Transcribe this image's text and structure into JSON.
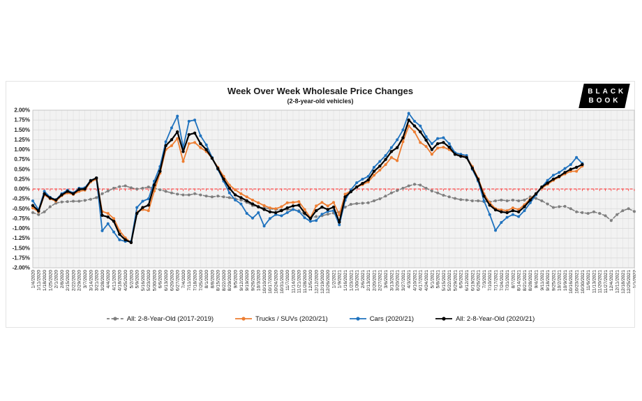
{
  "panel": {
    "logo": {
      "line1": "BLACK",
      "line2": "BOOK"
    }
  },
  "chart_data": {
    "type": "line",
    "title": "Week Over Week Wholesale Price Changes",
    "subtitle": "(2-8-year-old vehicles)",
    "xlabel": "",
    "ylabel": "",
    "ylim": [
      -2.0,
      2.0
    ],
    "ytick_step": 0.25,
    "y_tick_labels": [
      "2.00%",
      "1.75%",
      "1.50%",
      "1.25%",
      "1.00%",
      "0.75%",
      "0.50%",
      "0.25%",
      "0.00%",
      "-0.25%",
      "-0.50%",
      "-0.75%",
      "-1.00%",
      "-1.25%",
      "-1.50%",
      "-1.75%",
      "-2.00%"
    ],
    "grid": true,
    "legend_position": "bottom",
    "zero_line": {
      "value": 0.0,
      "color": "#ff2222",
      "style": "dashed-ticks"
    },
    "x": [
      "1/4/2020",
      "1/11/2020",
      "1/18/2020",
      "1/25/2020",
      "2/1/2020",
      "2/8/2020",
      "2/15/2020",
      "2/22/2020",
      "2/29/2020",
      "3/7/2020",
      "3/14/2020",
      "3/21/2020",
      "3/28/2020",
      "4/4/2020",
      "4/11/2020",
      "4/18/2020",
      "4/25/2020",
      "5/2/2020",
      "5/9/2020",
      "5/16/2020",
      "5/23/2020",
      "5/30/2020",
      "6/6/2020",
      "6/13/2020",
      "6/20/2020",
      "6/27/2020",
      "7/4/2020",
      "7/11/2020",
      "7/18/2020",
      "7/25/2020",
      "8/1/2020",
      "8/8/2020",
      "8/15/2020",
      "8/22/2020",
      "8/29/2020",
      "9/5/2020",
      "9/12/2020",
      "9/19/2020",
      "9/26/2020",
      "10/3/2020",
      "10/10/2020",
      "10/17/2020",
      "10/24/2020",
      "10/31/2020",
      "11/7/2020",
      "11/14/2020",
      "11/21/2020",
      "11/28/2020",
      "12/5/2020",
      "12/12/2020",
      "12/19/2020",
      "12/26/2020",
      "1/2/2021",
      "1/9/2021",
      "1/16/2021",
      "1/23/2021",
      "1/30/2021",
      "2/6/2021",
      "2/13/2021",
      "2/20/2021",
      "2/27/2021",
      "3/6/2021",
      "3/13/2021",
      "3/20/2021",
      "3/27/2021",
      "4/3/2021",
      "4/10/2021",
      "4/17/2021",
      "4/24/2021",
      "5/1/2021",
      "5/8/2021",
      "5/15/2021",
      "5/22/2021",
      "5/29/2021",
      "6/5/2021",
      "6/12/2021",
      "6/19/2021",
      "6/26/2021",
      "7/3/2021",
      "7/10/2021",
      "7/17/2021",
      "7/24/2021",
      "7/31/2021",
      "8/7/2021",
      "8/14/2021",
      "8/21/2021",
      "8/28/2021",
      "9/4/2021",
      "9/11/2021",
      "9/18/2021",
      "9/25/2021",
      "10/2/2021",
      "10/9/2021",
      "10/16/2021",
      "10/23/2021",
      "10/30/2021",
      "11/6/2021",
      "11/13/2021",
      "11/20/2021",
      "11/27/2021",
      "12/4/2021",
      "12/11/2021",
      "12/18/2021",
      "12/25/2021",
      "1/1/2022"
    ],
    "series": [
      {
        "name": "All: 2-8-Year-Old (2017-2019)",
        "color": "#7f7f7f",
        "style": "dashed",
        "marker": "circle",
        "values": [
          -0.6,
          -0.65,
          -0.58,
          -0.45,
          -0.36,
          -0.33,
          -0.32,
          -0.31,
          -0.31,
          -0.29,
          -0.26,
          -0.22,
          -0.12,
          -0.05,
          0.02,
          0.06,
          0.08,
          0.03,
          0.0,
          0.02,
          0.05,
          0.02,
          -0.02,
          -0.06,
          -0.1,
          -0.13,
          -0.15,
          -0.15,
          -0.12,
          -0.15,
          -0.18,
          -0.2,
          -0.18,
          -0.2,
          -0.22,
          -0.25,
          -0.28,
          -0.34,
          -0.42,
          -0.46,
          -0.48,
          -0.5,
          -0.52,
          -0.53,
          -0.52,
          -0.52,
          -0.55,
          -0.64,
          -0.73,
          -0.7,
          -0.68,
          -0.64,
          -0.61,
          -0.59,
          -0.46,
          -0.39,
          -0.37,
          -0.36,
          -0.35,
          -0.3,
          -0.25,
          -0.18,
          -0.1,
          -0.04,
          0.02,
          0.08,
          0.12,
          0.1,
          0.02,
          -0.05,
          -0.1,
          -0.16,
          -0.2,
          -0.24,
          -0.27,
          -0.28,
          -0.3,
          -0.3,
          -0.32,
          -0.33,
          -0.3,
          -0.28,
          -0.3,
          -0.28,
          -0.3,
          -0.28,
          -0.2,
          -0.24,
          -0.3,
          -0.38,
          -0.47,
          -0.45,
          -0.44,
          -0.5,
          -0.58,
          -0.6,
          -0.62,
          -0.58,
          -0.62,
          -0.68,
          -0.8,
          -0.65,
          -0.55,
          -0.5,
          -0.57
        ]
      },
      {
        "name": "Trucks / SUVs (2020/21)",
        "color": "#ED7D31",
        "style": "solid",
        "marker": "circle",
        "values": [
          -0.48,
          -0.58,
          -0.15,
          -0.25,
          -0.31,
          -0.17,
          -0.1,
          -0.14,
          -0.06,
          -0.03,
          0.18,
          0.25,
          -0.57,
          -0.62,
          -0.75,
          -1.06,
          -1.24,
          -1.36,
          -0.58,
          -0.52,
          -0.55,
          -0.05,
          0.4,
          1.0,
          1.1,
          1.28,
          0.7,
          1.15,
          1.18,
          1.05,
          0.95,
          0.78,
          0.55,
          0.32,
          0.1,
          -0.02,
          -0.12,
          -0.2,
          -0.28,
          -0.35,
          -0.42,
          -0.48,
          -0.5,
          -0.45,
          -0.35,
          -0.34,
          -0.32,
          -0.52,
          -0.73,
          -0.43,
          -0.34,
          -0.43,
          -0.34,
          -0.66,
          -0.13,
          -0.05,
          0.05,
          0.11,
          0.18,
          0.35,
          0.48,
          0.62,
          0.8,
          0.72,
          1.2,
          1.6,
          1.45,
          1.18,
          1.08,
          0.88,
          1.04,
          1.06,
          1.0,
          0.9,
          0.85,
          0.82,
          0.57,
          0.27,
          -0.12,
          -0.35,
          -0.5,
          -0.53,
          -0.55,
          -0.48,
          -0.52,
          -0.4,
          -0.25,
          -0.12,
          0.02,
          0.12,
          0.22,
          0.3,
          0.38,
          0.45,
          0.45,
          0.58,
          null,
          null,
          null,
          null,
          null,
          null,
          null,
          null,
          null
        ]
      },
      {
        "name": "Cars (2020/21)",
        "color": "#1F72BE",
        "style": "solid",
        "marker": "circle",
        "values": [
          -0.3,
          -0.53,
          -0.06,
          -0.21,
          -0.27,
          -0.12,
          -0.03,
          -0.1,
          0.02,
          0.03,
          0.22,
          0.28,
          -1.06,
          -0.88,
          -1.09,
          -1.29,
          -1.33,
          -1.33,
          -0.47,
          -0.31,
          -0.25,
          0.2,
          0.57,
          1.2,
          1.55,
          1.85,
          1.05,
          1.72,
          1.75,
          1.35,
          1.12,
          0.8,
          0.5,
          0.2,
          -0.1,
          -0.28,
          -0.38,
          -0.62,
          -0.74,
          -0.6,
          -0.94,
          -0.75,
          -0.65,
          -0.68,
          -0.6,
          -0.52,
          -0.57,
          -0.73,
          -0.82,
          -0.8,
          -0.64,
          -0.57,
          -0.55,
          -0.91,
          -0.29,
          -0.02,
          0.16,
          0.25,
          0.32,
          0.55,
          0.7,
          0.85,
          1.05,
          1.25,
          1.5,
          1.92,
          1.72,
          1.6,
          1.33,
          1.15,
          1.28,
          1.3,
          1.15,
          0.92,
          0.88,
          0.85,
          0.5,
          0.2,
          -0.3,
          -0.65,
          -1.05,
          -0.85,
          -0.72,
          -0.65,
          -0.7,
          -0.55,
          -0.35,
          -0.15,
          0.05,
          0.22,
          0.35,
          0.42,
          0.52,
          0.62,
          0.8,
          0.65,
          null,
          null,
          null,
          null,
          null,
          null,
          null,
          null,
          null
        ]
      },
      {
        "name": "All: 2-8-Year-Old (2020/21)",
        "color": "#000000",
        "style": "solid",
        "marker": "circle",
        "values": [
          -0.42,
          -0.56,
          -0.12,
          -0.23,
          -0.28,
          -0.15,
          -0.06,
          -0.12,
          -0.01,
          0.0,
          0.21,
          0.28,
          -0.67,
          -0.71,
          -0.82,
          -1.15,
          -1.29,
          -1.36,
          -0.62,
          -0.47,
          -0.41,
          0.1,
          0.45,
          1.1,
          1.25,
          1.45,
          0.95,
          1.38,
          1.42,
          1.15,
          1.0,
          0.78,
          0.52,
          0.25,
          0.02,
          -0.15,
          -0.22,
          -0.3,
          -0.38,
          -0.45,
          -0.52,
          -0.58,
          -0.6,
          -0.55,
          -0.48,
          -0.43,
          -0.41,
          -0.61,
          -0.75,
          -0.55,
          -0.46,
          -0.52,
          -0.46,
          -0.84,
          -0.2,
          -0.07,
          0.05,
          0.14,
          0.23,
          0.45,
          0.58,
          0.75,
          0.95,
          1.05,
          1.3,
          1.75,
          1.6,
          1.45,
          1.24,
          1.0,
          1.15,
          1.18,
          1.06,
          0.88,
          0.83,
          0.8,
          0.53,
          0.24,
          -0.18,
          -0.41,
          -0.53,
          -0.58,
          -0.6,
          -0.55,
          -0.58,
          -0.45,
          -0.28,
          -0.12,
          0.05,
          0.15,
          0.25,
          0.32,
          0.42,
          0.5,
          0.55,
          0.62,
          null,
          null,
          null,
          null,
          null,
          null,
          null,
          null,
          null
        ]
      }
    ]
  }
}
